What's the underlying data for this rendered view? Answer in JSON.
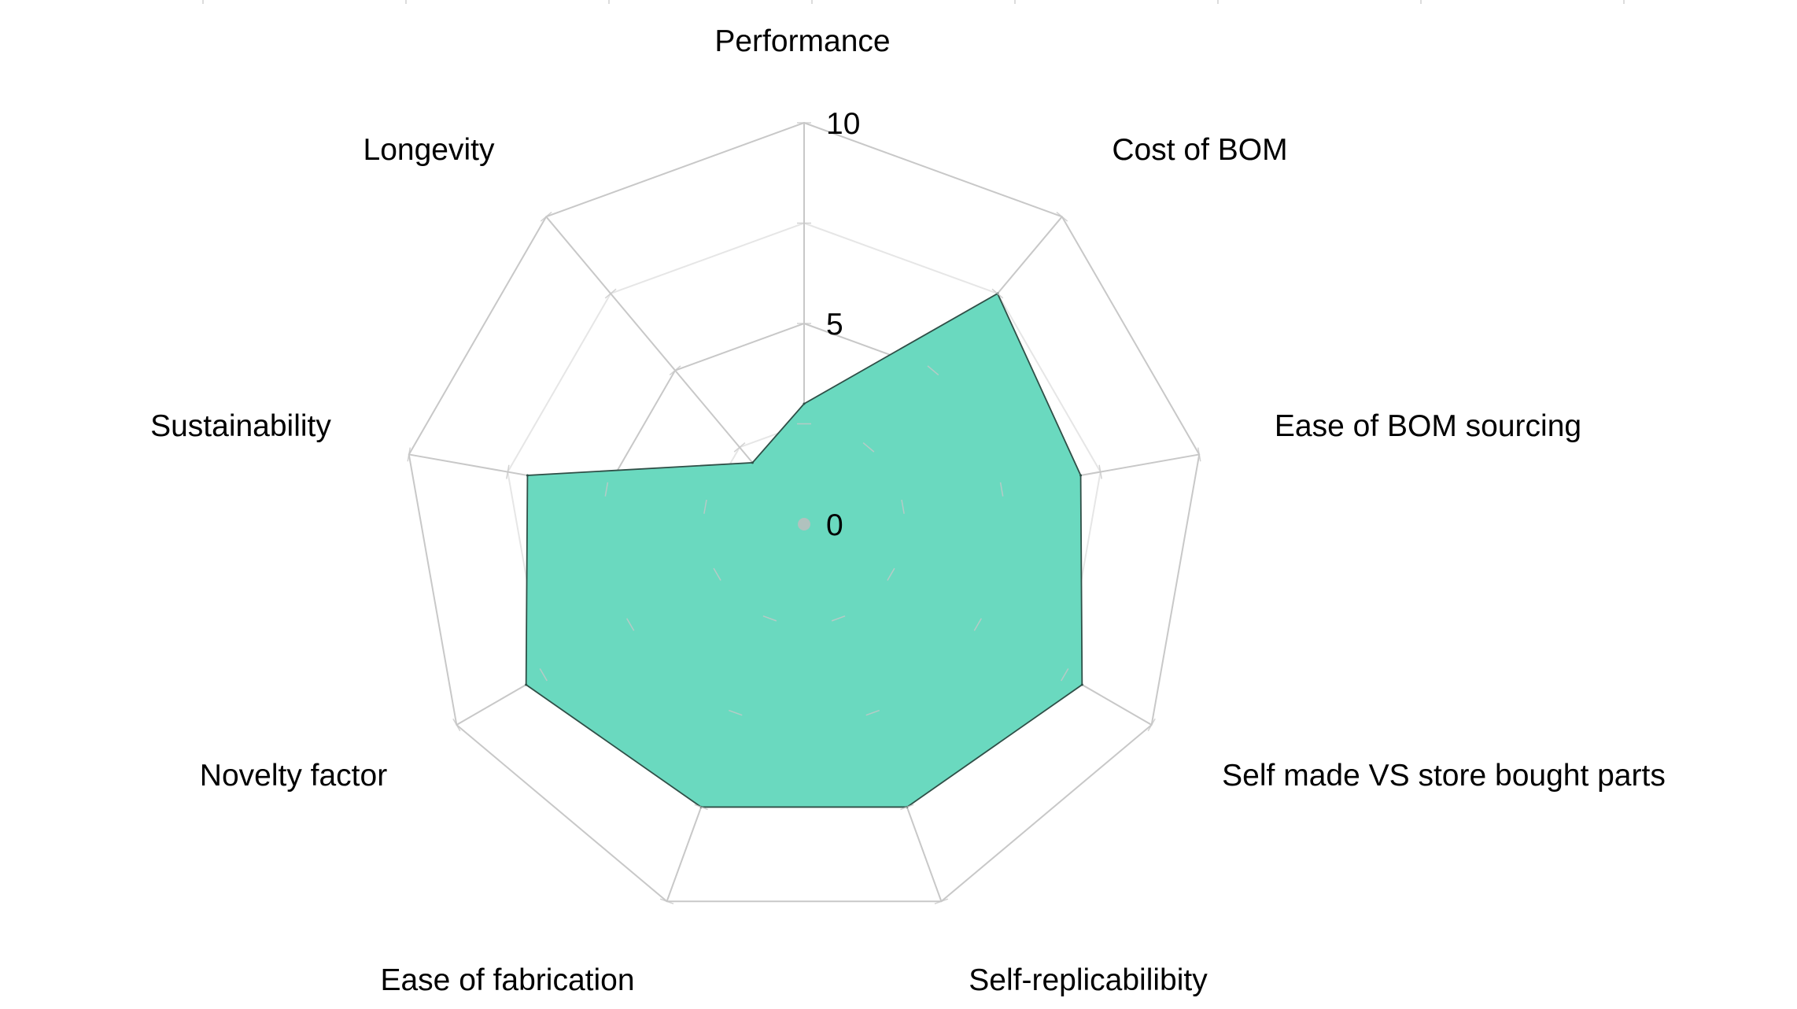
{
  "chart_data": {
    "type": "radar",
    "title": "",
    "categories": [
      "Performance",
      "Cost of BOM",
      "Ease of BOM sourcing",
      "Self made VS store bought parts",
      "Self-replicabilibity",
      "Ease of fabrication",
      "Novelty factor",
      "Sustainability",
      "Longevity"
    ],
    "series": [
      {
        "values": [
          3,
          7.5,
          7,
          8,
          7.5,
          7.5,
          8,
          7,
          2
        ],
        "fill_color": "#6ad9bf",
        "stroke_color": "#2f4f47"
      }
    ],
    "radial_range": [
      0,
      10
    ],
    "radial_ticks": [
      0,
      5,
      10
    ],
    "radial_tick_labels": [
      "0",
      "5",
      "10"
    ],
    "grid": true,
    "grid_color": "#c8c8c8",
    "minor_grid_color": "#e6e6e6",
    "legend": "none"
  }
}
